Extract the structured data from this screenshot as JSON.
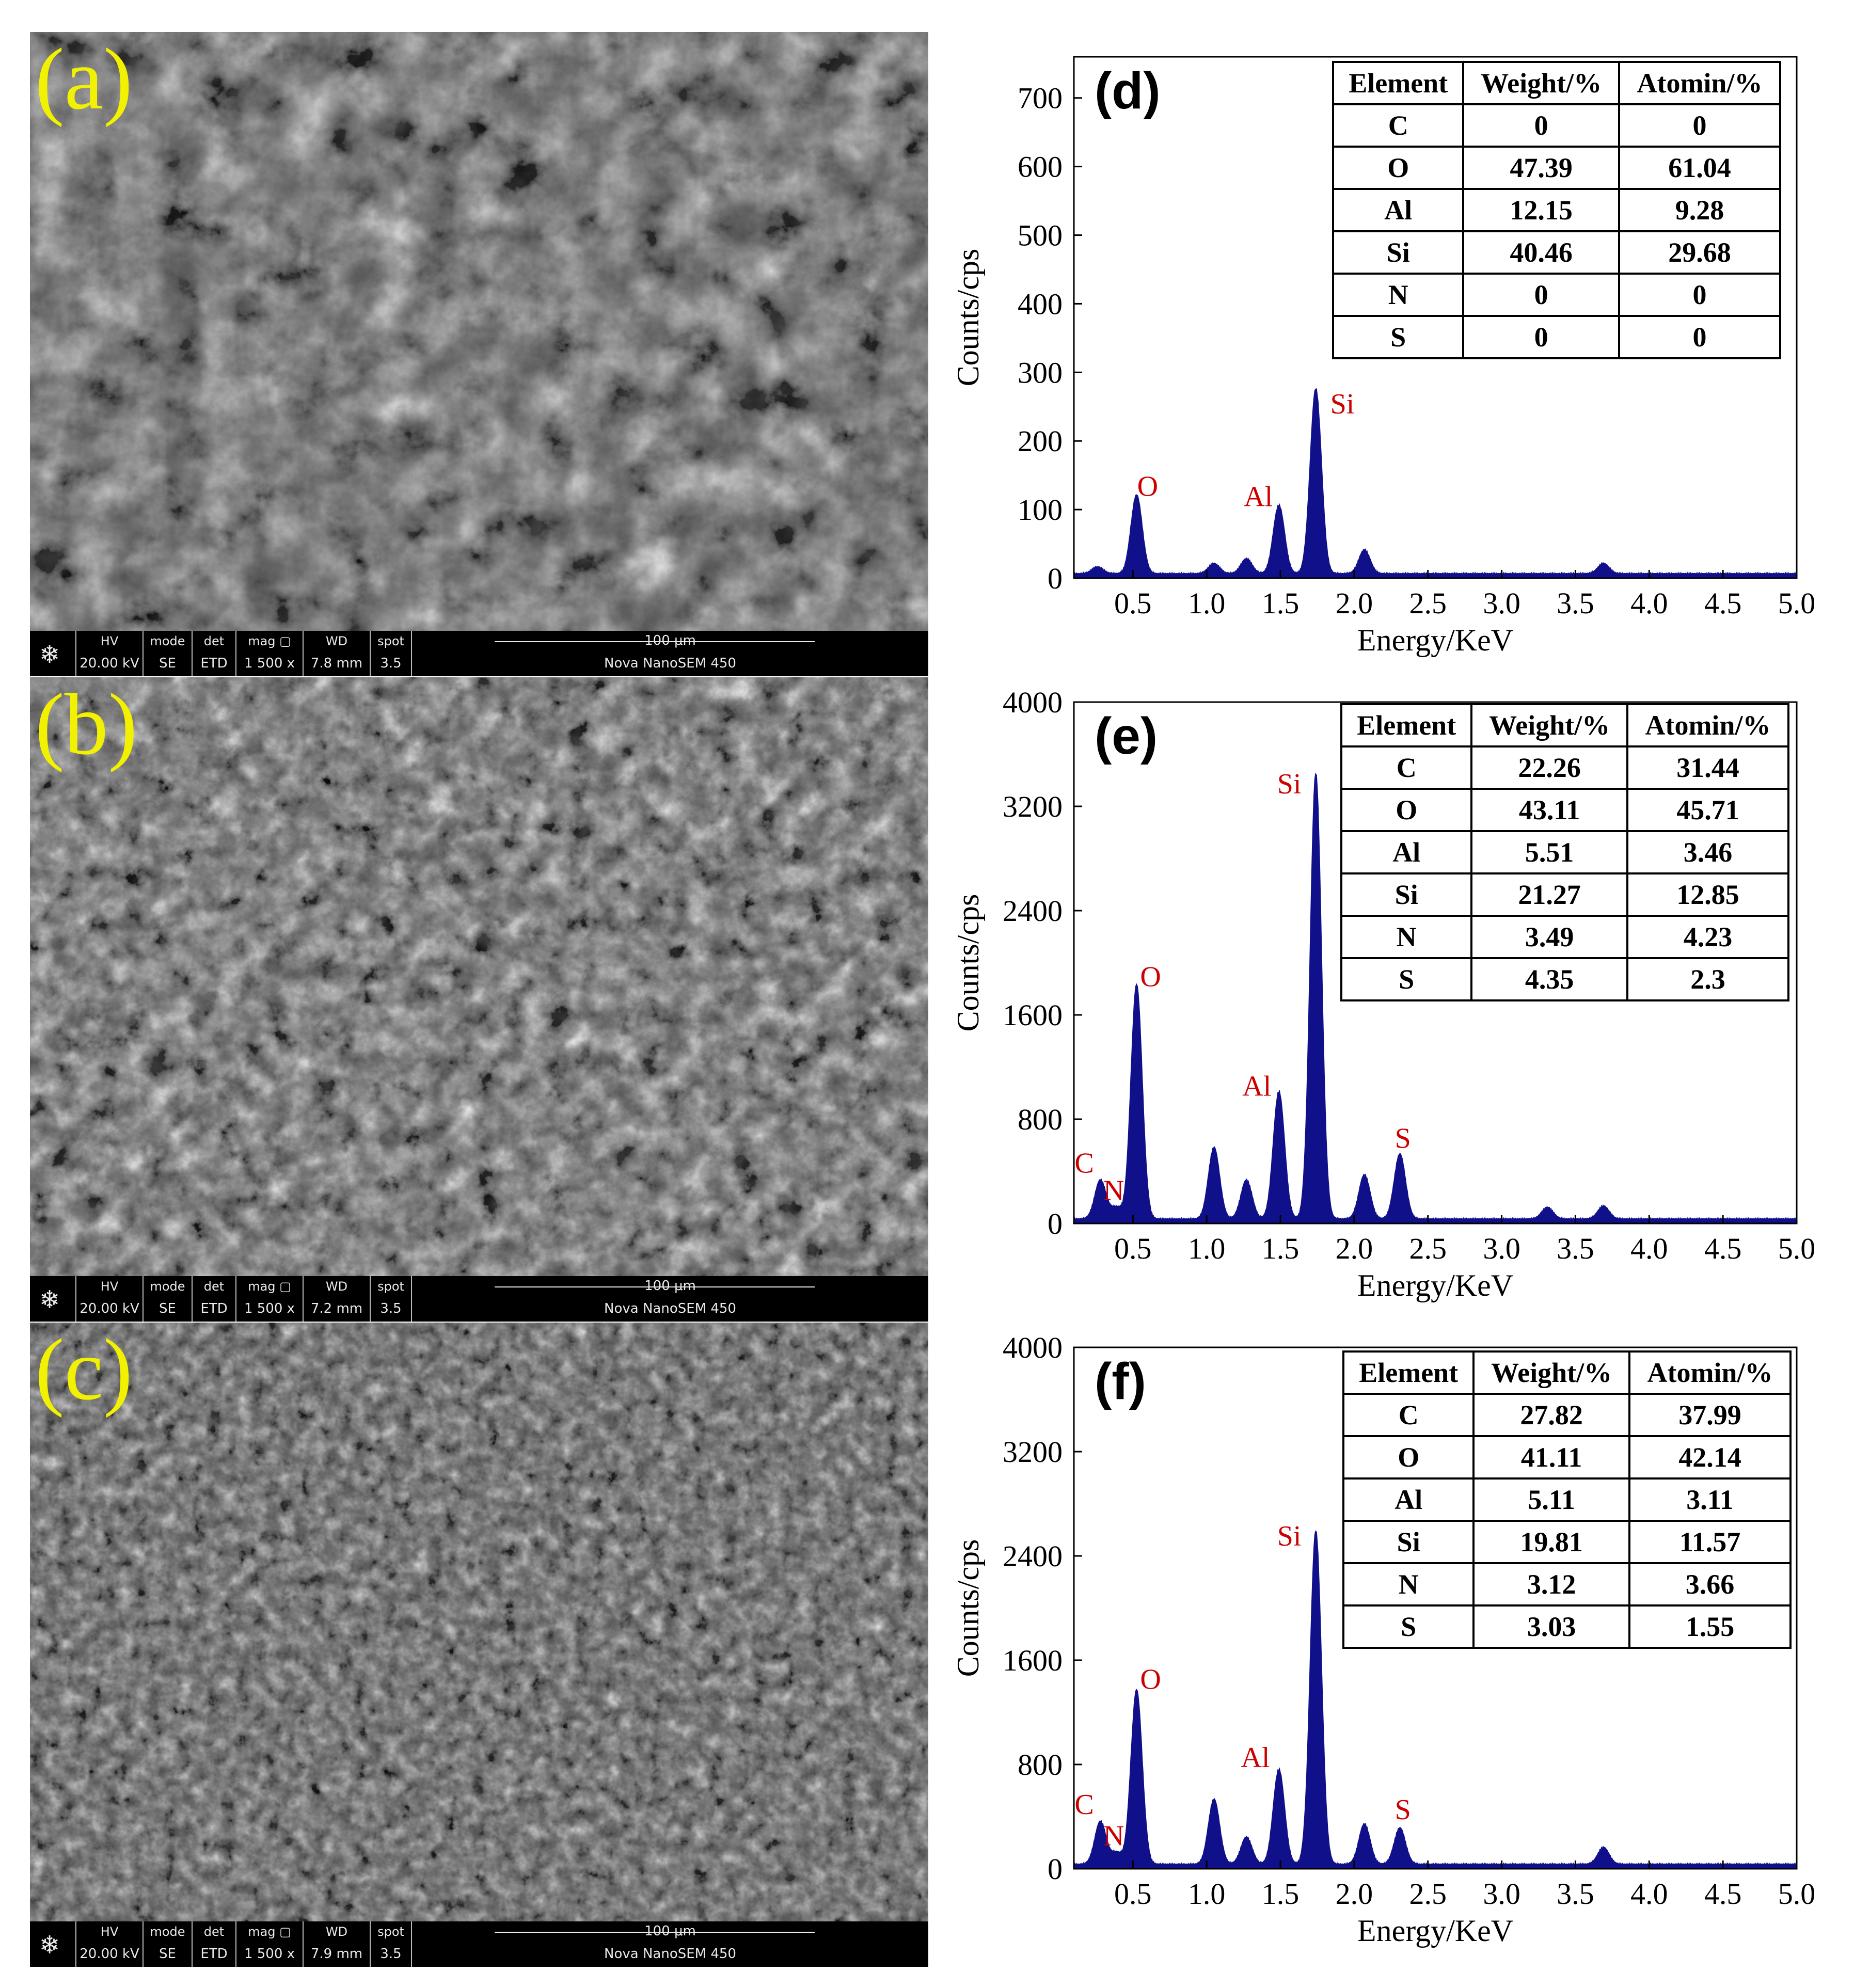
{
  "panels_sem": [
    {
      "label": "(a)",
      "hv_label": "HV",
      "hv": "20.00 kV",
      "mode_label": "mode",
      "mode": "SE",
      "det_label": "det",
      "det": "ETD",
      "mag_label": "mag ▢",
      "mag": "1 500 x",
      "wd_label": "WD",
      "wd": "7.8 mm",
      "spot_label": "spot",
      "spot": "3.5",
      "scale": "100 μm",
      "instrument": "Nova NanoSEM 450"
    },
    {
      "label": "(b)",
      "hv_label": "HV",
      "hv": "20.00 kV",
      "mode_label": "mode",
      "mode": "SE",
      "det_label": "det",
      "det": "ETD",
      "mag_label": "mag ▢",
      "mag": "1 500 x",
      "wd_label": "WD",
      "wd": "7.2 mm",
      "spot_label": "spot",
      "spot": "3.5",
      "scale": "100 μm",
      "instrument": "Nova NanoSEM 450"
    },
    {
      "label": "(c)",
      "hv_label": "HV",
      "hv": "20.00 kV",
      "mode_label": "mode",
      "mode": "SE",
      "det_label": "det",
      "det": "ETD",
      "mag_label": "mag ▢",
      "mag": "1 500 x",
      "wd_label": "WD",
      "wd": "7.9 mm",
      "spot_label": "spot",
      "spot": "3.5",
      "scale": "100 μm",
      "instrument": "Nova NanoSEM 450"
    }
  ],
  "table_headers": [
    "Element",
    "Weight/%",
    "Atomin/%"
  ],
  "colors": {
    "spectrum": "#10108a",
    "peak_label": "#cc0000",
    "sem_label": "#f2f200"
  },
  "chart_data": [
    {
      "type": "area",
      "panel_label": "(d)",
      "xlabel": "Energy/KeV",
      "ylabel": "Counts/cps",
      "xlim": [
        0.1,
        5.0
      ],
      "ylim": [
        0,
        760
      ],
      "xticks": [
        0.5,
        1.0,
        1.5,
        2.0,
        2.5,
        3.0,
        3.5,
        4.0,
        4.5,
        5.0
      ],
      "xtick_labels": [
        "0.5",
        "1.0",
        "1.5",
        "2.0",
        "2.5",
        "3.0",
        "3.5",
        "4.0",
        "4.5",
        "5.0"
      ],
      "yticks": [
        0,
        100,
        200,
        300,
        400,
        500,
        600,
        700
      ],
      "ytick_labels": [
        "0",
        "100",
        "200",
        "300",
        "400",
        "500",
        "600",
        "700"
      ],
      "peaks": [
        {
          "x": 0.26,
          "y": 10
        },
        {
          "x": 0.525,
          "y": 115
        },
        {
          "x": 1.05,
          "y": 15
        },
        {
          "x": 1.27,
          "y": 22
        },
        {
          "x": 1.49,
          "y": 100
        },
        {
          "x": 1.74,
          "y": 270
        },
        {
          "x": 2.07,
          "y": 35
        },
        {
          "x": 3.69,
          "y": 15
        }
      ],
      "peak_labels": [
        {
          "text": "O",
          "x": 0.6,
          "y": 120
        },
        {
          "text": "Al",
          "x": 1.35,
          "y": 105
        },
        {
          "text": "Si",
          "x": 1.92,
          "y": 240
        }
      ],
      "table": [
        [
          "C",
          "0",
          "0"
        ],
        [
          "O",
          "47.39",
          "61.04"
        ],
        [
          "Al",
          "12.15",
          "9.28"
        ],
        [
          "Si",
          "40.46",
          "29.68"
        ],
        [
          "N",
          "0",
          "0"
        ],
        [
          "S",
          "0",
          "0"
        ]
      ]
    },
    {
      "type": "area",
      "panel_label": "(e)",
      "xlabel": "Energy/KeV",
      "ylabel": "Counts/cps",
      "xlim": [
        0.1,
        5.0
      ],
      "ylim": [
        0,
        4000
      ],
      "xticks": [
        0.5,
        1.0,
        1.5,
        2.0,
        2.5,
        3.0,
        3.5,
        4.0,
        4.5,
        5.0
      ],
      "xtick_labels": [
        "0.5",
        "1.0",
        "1.5",
        "2.0",
        "2.5",
        "3.0",
        "3.5",
        "4.0",
        "4.5",
        "5.0"
      ],
      "yticks": [
        0,
        800,
        1600,
        2400,
        3200,
        4000
      ],
      "ytick_labels": [
        "0",
        "800",
        "1600",
        "2400",
        "3200",
        "4000"
      ],
      "peaks": [
        {
          "x": 0.28,
          "y": 300
        },
        {
          "x": 0.39,
          "y": 90
        },
        {
          "x": 0.525,
          "y": 1800
        },
        {
          "x": 1.05,
          "y": 550
        },
        {
          "x": 1.27,
          "y": 300
        },
        {
          "x": 1.49,
          "y": 980
        },
        {
          "x": 1.74,
          "y": 3420
        },
        {
          "x": 2.07,
          "y": 340
        },
        {
          "x": 2.31,
          "y": 500
        },
        {
          "x": 3.31,
          "y": 90
        },
        {
          "x": 3.69,
          "y": 100
        }
      ],
      "peak_labels": [
        {
          "text": "C",
          "x": 0.17,
          "y": 390
        },
        {
          "text": "N",
          "x": 0.37,
          "y": 180
        },
        {
          "text": "O",
          "x": 0.62,
          "y": 1820
        },
        {
          "text": "Al",
          "x": 1.34,
          "y": 980
        },
        {
          "text": "Si",
          "x": 1.56,
          "y": 3300
        },
        {
          "text": "S",
          "x": 2.33,
          "y": 580
        }
      ],
      "table": [
        [
          "C",
          "22.26",
          "31.44"
        ],
        [
          "O",
          "43.11",
          "45.71"
        ],
        [
          "Al",
          "5.51",
          "3.46"
        ],
        [
          "Si",
          "21.27",
          "12.85"
        ],
        [
          "N",
          "3.49",
          "4.23"
        ],
        [
          "S",
          "4.35",
          "2.3"
        ]
      ]
    },
    {
      "type": "area",
      "panel_label": "(f)",
      "xlabel": "Energy/KeV",
      "ylabel": "Counts/cps",
      "xlim": [
        0.1,
        5.0
      ],
      "ylim": [
        0,
        4000
      ],
      "xticks": [
        0.5,
        1.0,
        1.5,
        2.0,
        2.5,
        3.0,
        3.5,
        4.0,
        4.5,
        5.0
      ],
      "xtick_labels": [
        "0.5",
        "1.0",
        "1.5",
        "2.0",
        "2.5",
        "3.0",
        "3.5",
        "4.0",
        "4.5",
        "5.0"
      ],
      "yticks": [
        0,
        800,
        1600,
        2400,
        3200,
        4000
      ],
      "ytick_labels": [
        "0",
        "800",
        "1600",
        "2400",
        "3200",
        "4000"
      ],
      "peaks": [
        {
          "x": 0.28,
          "y": 330
        },
        {
          "x": 0.39,
          "y": 90
        },
        {
          "x": 0.525,
          "y": 1340
        },
        {
          "x": 1.05,
          "y": 500
        },
        {
          "x": 1.27,
          "y": 210
        },
        {
          "x": 1.49,
          "y": 730
        },
        {
          "x": 1.74,
          "y": 2560
        },
        {
          "x": 2.07,
          "y": 310
        },
        {
          "x": 2.31,
          "y": 280
        },
        {
          "x": 3.69,
          "y": 130
        }
      ],
      "peak_labels": [
        {
          "text": "C",
          "x": 0.17,
          "y": 420
        },
        {
          "text": "N",
          "x": 0.37,
          "y": 180
        },
        {
          "text": "O",
          "x": 0.62,
          "y": 1380
        },
        {
          "text": "Al",
          "x": 1.33,
          "y": 780
        },
        {
          "text": "Si",
          "x": 1.56,
          "y": 2480
        },
        {
          "text": "S",
          "x": 2.33,
          "y": 380
        }
      ],
      "table": [
        [
          "C",
          "27.82",
          "37.99"
        ],
        [
          "O",
          "41.11",
          "42.14"
        ],
        [
          "Al",
          "5.11",
          "3.11"
        ],
        [
          "Si",
          "19.81",
          "11.57"
        ],
        [
          "N",
          "3.12",
          "3.66"
        ],
        [
          "S",
          "3.03",
          "1.55"
        ]
      ]
    }
  ]
}
